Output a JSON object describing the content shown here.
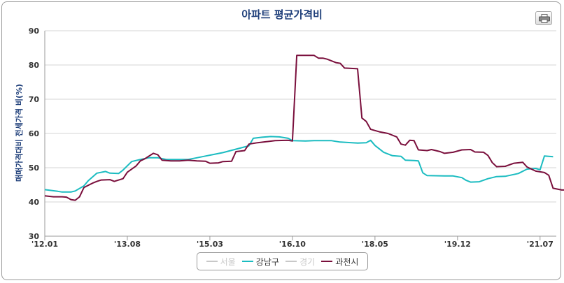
{
  "colors": {
    "gangnam": "#1bbcc1",
    "gwacheon": "#7a0f3c",
    "disabled": "#c8c8c8",
    "grid": "#d4d4d4"
  },
  "chart_data": {
    "type": "line",
    "title": "아파트 평균가격비",
    "ylabel": "매매가격대비 전세가격 비(%)",
    "ylim": [
      30,
      90
    ],
    "yticks": [
      30,
      40,
      50,
      60,
      70,
      80,
      90
    ],
    "xlim": [
      0,
      115
    ],
    "xticks": [
      {
        "label": "'12.01",
        "index": 0
      },
      {
        "label": "'13.08",
        "index": 19
      },
      {
        "label": "'15.03",
        "index": 38
      },
      {
        "label": "'16.10",
        "index": 57
      },
      {
        "label": "'18.05",
        "index": 76
      },
      {
        "label": "'19.12",
        "index": 95
      },
      {
        "label": "'21.07",
        "index": 114
      }
    ],
    "grid": true,
    "legend": "bottom-center",
    "series": [
      {
        "name": "서울",
        "visible": false,
        "points": []
      },
      {
        "name": "강남구",
        "visible": true,
        "color": "#1bbcc1",
        "points": [
          [
            0,
            43.6
          ],
          [
            3,
            43.1
          ],
          [
            4,
            42.9
          ],
          [
            6,
            42.9
          ],
          [
            7,
            43.2
          ],
          [
            9,
            44.7
          ],
          [
            10,
            46.2
          ],
          [
            12,
            48.4
          ],
          [
            14,
            48.9
          ],
          [
            15,
            48.4
          ],
          [
            17,
            48.3
          ],
          [
            18,
            49.3
          ],
          [
            20,
            51.8
          ],
          [
            22,
            52.4
          ],
          [
            24,
            52.9
          ],
          [
            26,
            52.9
          ],
          [
            28,
            52.4
          ],
          [
            30,
            52.4
          ],
          [
            33,
            52.4
          ],
          [
            35,
            52.9
          ],
          [
            37,
            53.4
          ],
          [
            39,
            53.9
          ],
          [
            41,
            54.4
          ],
          [
            44,
            55.4
          ],
          [
            47,
            56.4
          ],
          [
            48,
            58.6
          ],
          [
            50,
            58.9
          ],
          [
            52,
            59.1
          ],
          [
            54,
            59.0
          ],
          [
            56,
            58.6
          ],
          [
            57,
            57.9
          ],
          [
            60,
            57.8
          ],
          [
            62,
            57.9
          ],
          [
            66,
            57.9
          ],
          [
            68,
            57.5
          ],
          [
            72,
            57.2
          ],
          [
            74,
            57.3
          ],
          [
            75,
            58.0
          ],
          [
            76,
            56.5
          ],
          [
            78,
            54.5
          ],
          [
            80,
            53.5
          ],
          [
            82,
            53.3
          ],
          [
            83,
            52.2
          ],
          [
            85,
            52.1
          ],
          [
            86,
            52.0
          ],
          [
            87,
            48.5
          ],
          [
            88,
            47.7
          ],
          [
            92,
            47.6
          ],
          [
            94,
            47.6
          ],
          [
            96,
            47.1
          ],
          [
            97,
            46.3
          ],
          [
            98,
            45.8
          ],
          [
            100,
            45.9
          ],
          [
            102,
            46.8
          ],
          [
            104,
            47.4
          ],
          [
            106,
            47.5
          ],
          [
            109,
            48.3
          ],
          [
            111,
            49.6
          ],
          [
            113,
            49.8
          ],
          [
            114,
            49.4
          ],
          [
            115,
            53.4
          ],
          [
            117,
            53.2
          ]
        ]
      },
      {
        "name": "경기",
        "visible": false,
        "points": []
      },
      {
        "name": "과천시",
        "visible": true,
        "color": "#7a0f3c",
        "points": [
          [
            0,
            41.8
          ],
          [
            2,
            41.5
          ],
          [
            4,
            41.5
          ],
          [
            5,
            41.4
          ],
          [
            6,
            40.7
          ],
          [
            7,
            40.5
          ],
          [
            8,
            41.5
          ],
          [
            9,
            44.2
          ],
          [
            11,
            45.5
          ],
          [
            12,
            46.0
          ],
          [
            13,
            46.4
          ],
          [
            15,
            46.5
          ],
          [
            16,
            46.0
          ],
          [
            18,
            46.8
          ],
          [
            19,
            48.7
          ],
          [
            21,
            50.5
          ],
          [
            22,
            52.0
          ],
          [
            23,
            52.6
          ],
          [
            25,
            54.2
          ],
          [
            26,
            53.8
          ],
          [
            27,
            52.2
          ],
          [
            29,
            52.0
          ],
          [
            31,
            52.0
          ],
          [
            33,
            52.2
          ],
          [
            35,
            52.0
          ],
          [
            37,
            51.9
          ],
          [
            38,
            51.3
          ],
          [
            40,
            51.4
          ],
          [
            41,
            51.8
          ],
          [
            43,
            51.9
          ],
          [
            44,
            54.7
          ],
          [
            46,
            55.0
          ],
          [
            47,
            56.9
          ],
          [
            49,
            57.3
          ],
          [
            51,
            57.6
          ],
          [
            53,
            57.9
          ],
          [
            56,
            58.0
          ],
          [
            57,
            57.8
          ],
          [
            58,
            82.8
          ],
          [
            59,
            82.8
          ],
          [
            61,
            82.8
          ],
          [
            62,
            82.8
          ],
          [
            63,
            82.0
          ],
          [
            64,
            82.0
          ],
          [
            65,
            81.7
          ],
          [
            67,
            80.7
          ],
          [
            68,
            80.5
          ],
          [
            69,
            79.1
          ],
          [
            72,
            78.9
          ],
          [
            73,
            64.5
          ],
          [
            74,
            63.5
          ],
          [
            75,
            61.2
          ],
          [
            77,
            60.5
          ],
          [
            79,
            60.0
          ],
          [
            81,
            59.0
          ],
          [
            82,
            56.9
          ],
          [
            83,
            56.6
          ],
          [
            84,
            58.0
          ],
          [
            85,
            57.9
          ],
          [
            86,
            55.2
          ],
          [
            88,
            55.0
          ],
          [
            89,
            55.3
          ],
          [
            91,
            54.7
          ],
          [
            92,
            54.2
          ],
          [
            94,
            54.5
          ],
          [
            96,
            55.2
          ],
          [
            98,
            55.3
          ],
          [
            99,
            54.6
          ],
          [
            101,
            54.5
          ],
          [
            102,
            53.6
          ],
          [
            103,
            51.5
          ],
          [
            104,
            50.3
          ],
          [
            106,
            50.4
          ],
          [
            108,
            51.3
          ],
          [
            110,
            51.6
          ],
          [
            111,
            50.2
          ],
          [
            113,
            49.0
          ],
          [
            115,
            48.6
          ],
          [
            116,
            47.8
          ],
          [
            117,
            44.0
          ],
          [
            119,
            43.5
          ],
          [
            120,
            43.5
          ]
        ]
      }
    ]
  }
}
